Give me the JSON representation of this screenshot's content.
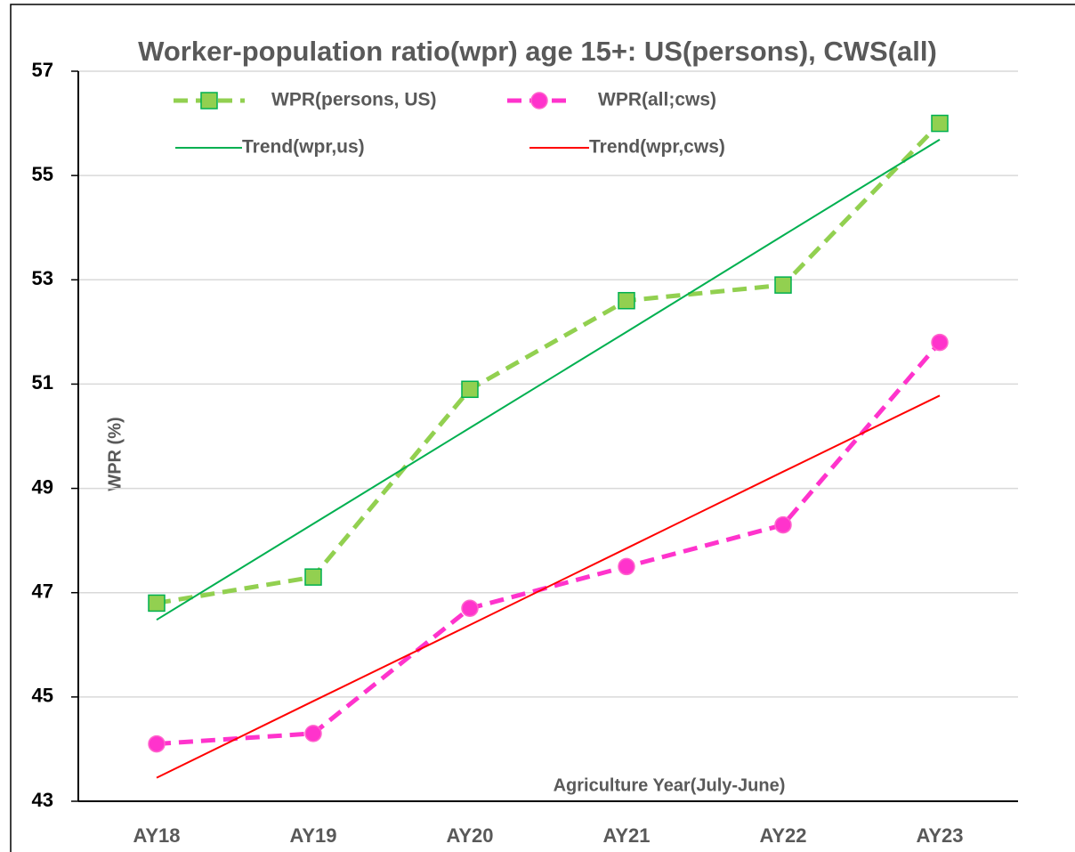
{
  "chart_data": {
    "type": "line",
    "title": "Worker-population ratio(wpr) age 15+: US(persons), CWS(all)",
    "ylabel": "WPR (%)",
    "xlabel": "Agriculture Year(July-June)",
    "categories": [
      "AY18",
      "AY19",
      "AY20",
      "AY21",
      "AY22",
      "AY23"
    ],
    "series": [
      {
        "name": "WPR(persons, US)",
        "color": "#92d050",
        "marker_edge": "#00b050",
        "marker": "square",
        "dash": true,
        "values": [
          46.8,
          47.3,
          50.9,
          52.6,
          52.9,
          56.0
        ]
      },
      {
        "name": "WPR(all;cws)",
        "color": "#ff33cc",
        "marker_edge": "#ff66cc",
        "marker": "circle",
        "dash": true,
        "values": [
          44.1,
          44.3,
          46.7,
          47.5,
          48.3,
          51.8
        ]
      },
      {
        "name": "Trend(wpr,us)",
        "color": "#00b050",
        "marker": "none",
        "dash": false,
        "values": [
          46.48,
          48.32,
          50.16,
          52.0,
          53.85,
          55.69
        ]
      },
      {
        "name": "Trend(wpr,cws)",
        "color": "#ff0000",
        "marker": "none",
        "dash": false,
        "values": [
          43.45,
          44.92,
          46.38,
          47.85,
          49.32,
          50.78
        ]
      }
    ],
    "ylim": [
      43,
      57
    ],
    "yticks": [
      43,
      45,
      47,
      49,
      51,
      53,
      55,
      57
    ],
    "grid": true,
    "legend": "top"
  }
}
